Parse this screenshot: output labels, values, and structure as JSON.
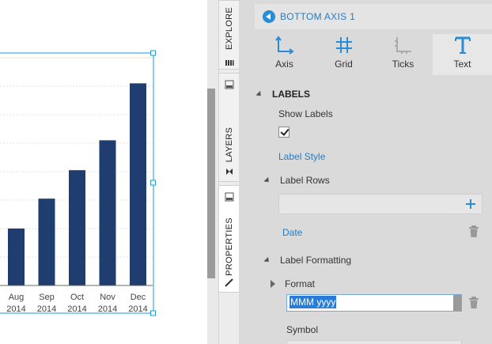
{
  "chart_data": {
    "type": "bar",
    "categories": [
      "Aug\n2014",
      "Sep\n2014",
      "Oct\n2014",
      "Nov\n2014",
      "Dec\n2014"
    ],
    "tick_labels": [
      {
        "month": "Aug",
        "year": "2014"
      },
      {
        "month": "Sep",
        "year": "2014"
      },
      {
        "month": "Oct",
        "year": "2014"
      },
      {
        "month": "Nov",
        "year": "2014"
      },
      {
        "month": "Dec",
        "year": "2014"
      }
    ],
    "values": [
      40,
      61,
      81,
      102,
      142
    ],
    "ylim": [
      0,
      160
    ],
    "grid": true,
    "bar_color": "#1f3d6e",
    "title": "",
    "xlabel": "",
    "ylabel": ""
  },
  "vertical_tabs": [
    {
      "label": "EXPLORE",
      "icon": "books-icon"
    },
    {
      "label": "LAYERS",
      "icon": "layers-icon"
    },
    {
      "label": "PROPERTIES",
      "icon": "brush-icon",
      "active": true
    }
  ],
  "panel": {
    "header_title": "BOTTOM AXIS 1",
    "tabs": [
      {
        "label": "Axis",
        "icon": "axis-icon"
      },
      {
        "label": "Grid",
        "icon": "grid-icon"
      },
      {
        "label": "Ticks",
        "icon": "ticks-icon"
      },
      {
        "label": "Text",
        "icon": "text-icon",
        "active": true
      }
    ],
    "labels_section": "LABELS",
    "show_labels": "Show Labels",
    "show_labels_checked": true,
    "label_style": "Label Style",
    "label_rows": "Label Rows",
    "label_rows_item": "Date",
    "label_formatting": "Label Formatting",
    "format_label": "Format",
    "format_value": "MMM yyyy",
    "symbol_label": "Symbol"
  },
  "colors": {
    "accent": "#2a8bd6",
    "selection": "#1a9bd7",
    "panel_bg": "#dadada"
  }
}
